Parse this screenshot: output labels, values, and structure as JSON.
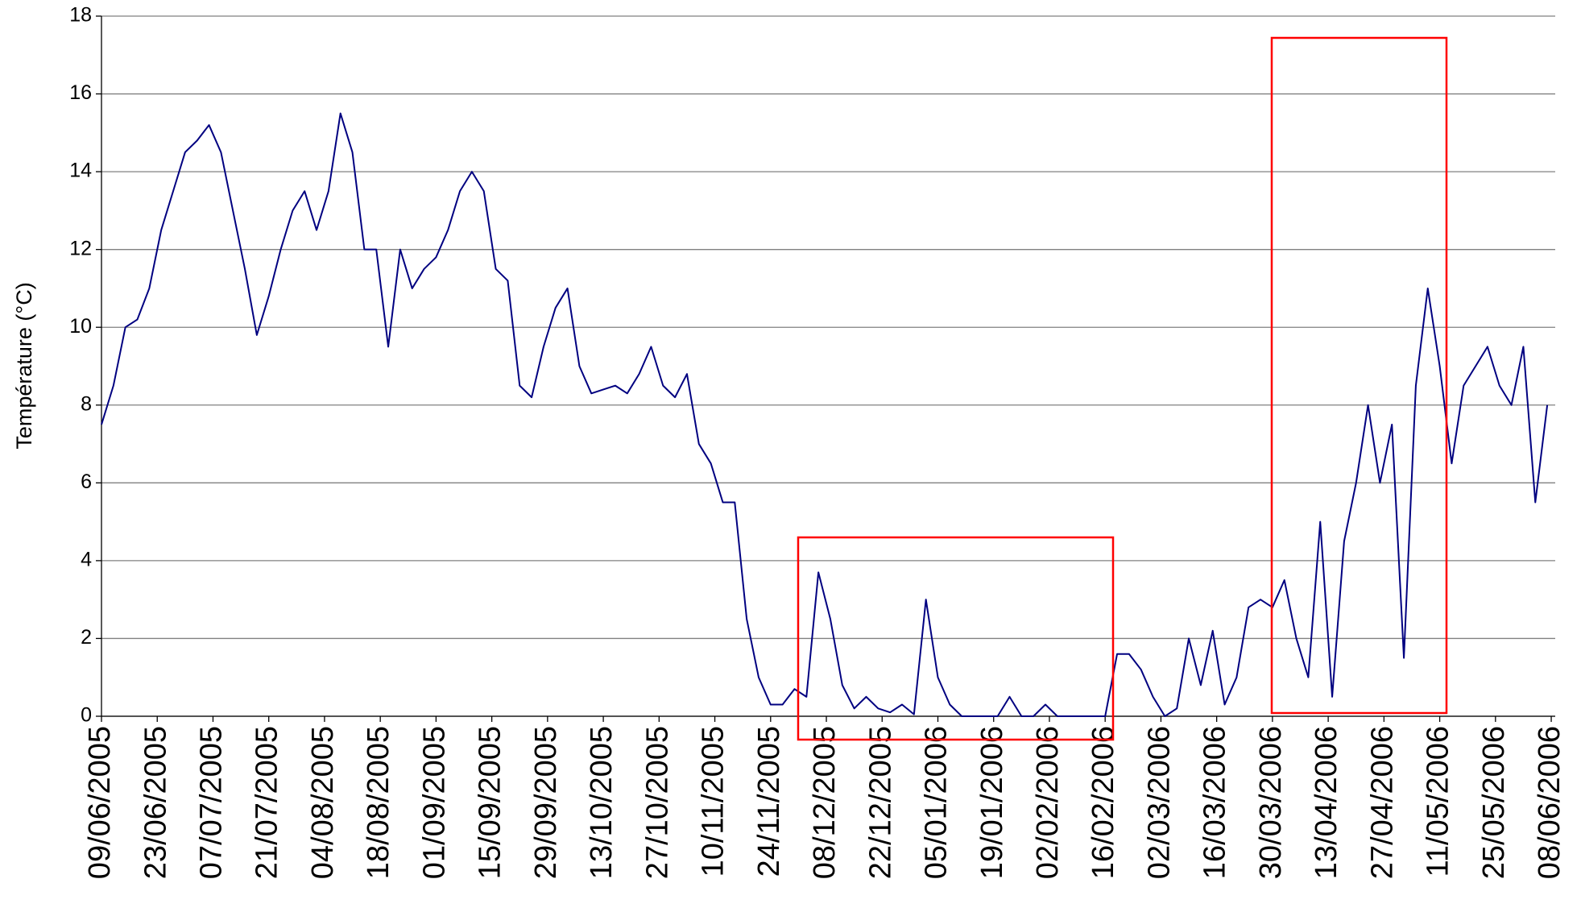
{
  "chart_data": {
    "type": "line",
    "ylabel": "Température (°C)",
    "x": [
      "09/06/2005",
      "12/06/2005",
      "15/06/2005",
      "18/06/2005",
      "21/06/2005",
      "24/06/2005",
      "27/06/2005",
      "30/06/2005",
      "03/07/2005",
      "06/07/2005",
      "09/07/2005",
      "12/07/2005",
      "15/07/2005",
      "18/07/2005",
      "21/07/2005",
      "24/07/2005",
      "27/07/2005",
      "30/07/2005",
      "02/08/2005",
      "05/08/2005",
      "08/08/2005",
      "11/08/2005",
      "14/08/2005",
      "17/08/2005",
      "20/08/2005",
      "23/08/2005",
      "26/08/2005",
      "29/08/2005",
      "01/09/2005",
      "04/09/2005",
      "07/09/2005",
      "10/09/2005",
      "13/09/2005",
      "16/09/2005",
      "19/09/2005",
      "22/09/2005",
      "25/09/2005",
      "28/09/2005",
      "01/10/2005",
      "04/10/2005",
      "07/10/2005",
      "10/10/2005",
      "13/10/2005",
      "16/10/2005",
      "19/10/2005",
      "22/10/2005",
      "25/10/2005",
      "28/10/2005",
      "31/10/2005",
      "03/11/2005",
      "06/11/2005",
      "09/11/2005",
      "12/11/2005",
      "15/11/2005",
      "18/11/2005",
      "21/11/2005",
      "24/11/2005",
      "27/11/2005",
      "30/11/2005",
      "03/12/2005",
      "06/12/2005",
      "09/12/2005",
      "12/12/2005",
      "15/12/2005",
      "18/12/2005",
      "21/12/2005",
      "24/12/2005",
      "27/12/2005",
      "30/12/2005",
      "02/01/2006",
      "05/01/2006",
      "08/01/2006",
      "11/01/2006",
      "14/01/2006",
      "17/01/2006",
      "20/01/2006",
      "23/01/2006",
      "26/01/2006",
      "29/01/2006",
      "01/02/2006",
      "04/02/2006",
      "07/02/2006",
      "10/02/2006",
      "13/02/2006",
      "16/02/2006",
      "19/02/2006",
      "22/02/2006",
      "25/02/2006",
      "28/02/2006",
      "03/03/2006",
      "06/03/2006",
      "09/03/2006",
      "12/03/2006",
      "15/03/2006",
      "18/03/2006",
      "21/03/2006",
      "24/03/2006",
      "27/03/2006",
      "30/03/2006",
      "02/04/2006",
      "05/04/2006",
      "08/04/2006",
      "11/04/2006",
      "14/04/2006",
      "17/04/2006",
      "20/04/2006",
      "23/04/2006",
      "26/04/2006",
      "29/04/2006",
      "02/05/2006",
      "05/05/2006",
      "08/05/2006",
      "11/05/2006",
      "14/05/2006",
      "17/05/2006",
      "20/05/2006",
      "23/05/2006",
      "26/05/2006",
      "29/05/2006",
      "01/06/2006",
      "04/06/2006",
      "07/06/2006"
    ],
    "values": [
      7.5,
      8.5,
      10,
      10.2,
      11,
      12.5,
      13.5,
      14.5,
      14.8,
      15.2,
      14.5,
      13,
      11.5,
      9.8,
      10.8,
      12,
      13,
      13.5,
      12.5,
      13.5,
      15.5,
      14.5,
      12,
      12,
      9.5,
      12,
      11,
      11.5,
      11.8,
      12.5,
      13.5,
      14,
      13.5,
      11.5,
      11.2,
      8.5,
      8.2,
      9.5,
      10.5,
      11,
      9,
      8.3,
      8.4,
      8.5,
      8.3,
      8.8,
      9.5,
      8.5,
      8.2,
      8.8,
      7,
      6.5,
      5.5,
      5.5,
      2.5,
      1,
      0.3,
      0.3,
      0.7,
      0.5,
      3.7,
      2.5,
      0.8,
      0.2,
      0.5,
      0.2,
      0.1,
      0.3,
      0.05,
      3,
      1,
      0.3,
      0,
      0,
      0,
      0,
      0.5,
      0,
      0,
      0.3,
      0,
      0,
      0,
      0,
      0,
      1.6,
      1.6,
      1.2,
      0.5,
      0,
      0.2,
      2,
      0.8,
      2.2,
      0.3,
      1,
      2.8,
      3,
      2.8,
      3.5,
      2,
      1,
      5,
      0.5,
      4.5,
      6,
      8,
      6,
      7.5,
      1.5,
      8.5,
      11,
      9,
      6.5,
      8.5,
      9,
      9.5,
      8.5,
      8,
      9.5,
      5.5,
      8
    ],
    "color": "#000080",
    "xlim": [
      "09/06/2005",
      "09/06/2006"
    ],
    "xticks": [
      "09/06/2005",
      "23/06/2005",
      "07/07/2005",
      "21/07/2005",
      "04/08/2005",
      "18/08/2005",
      "01/09/2005",
      "15/09/2005",
      "29/09/2005",
      "13/10/2005",
      "27/10/2005",
      "10/11/2005",
      "24/11/2005",
      "08/12/2005",
      "22/12/2005",
      "05/01/2006",
      "19/01/2006",
      "02/02/2006",
      "16/02/2006",
      "02/03/2006",
      "16/03/2006",
      "30/03/2006",
      "13/04/2006",
      "27/04/2006",
      "11/05/2006",
      "25/05/2006",
      "08/06/2006"
    ],
    "ylim": [
      0,
      18
    ],
    "yticks": [
      0,
      2,
      4,
      6,
      8,
      10,
      12,
      14,
      16,
      18
    ],
    "grid": true
  }
}
